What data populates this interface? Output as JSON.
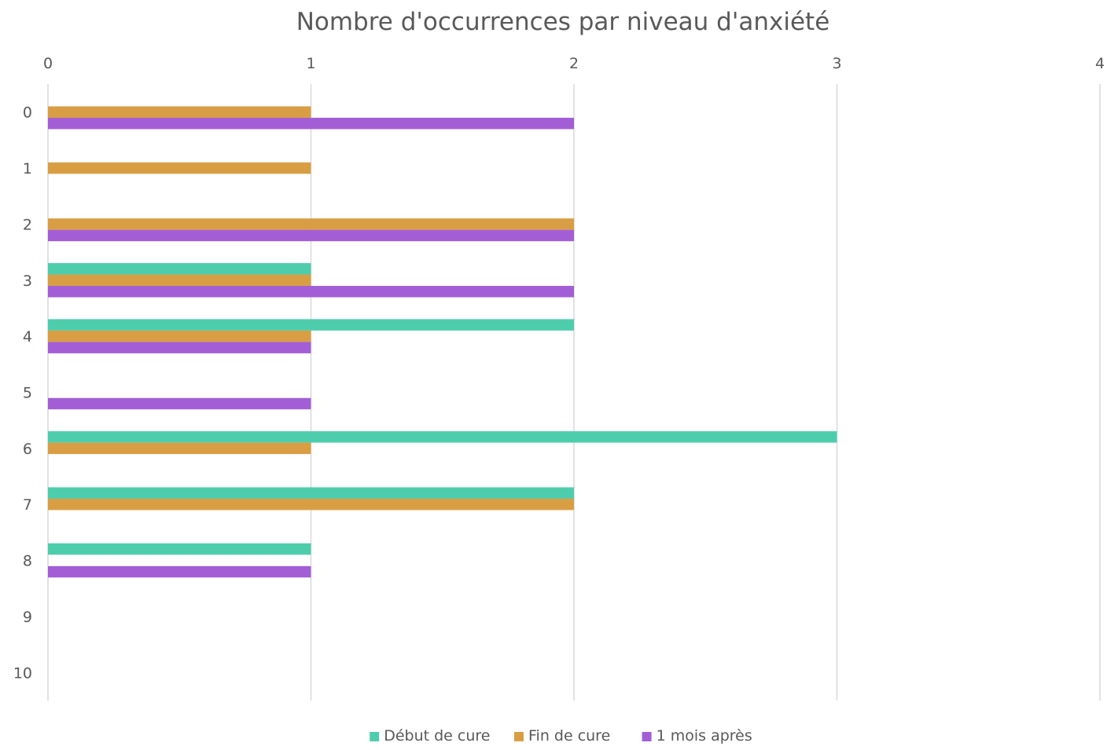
{
  "chart_data": {
    "type": "bar",
    "orientation": "horizontal",
    "title": "Nombre d'occurrences par niveau d'anxiété",
    "xlabel": "",
    "ylabel": "",
    "x_axis_position": "top",
    "xlim": [
      0,
      4
    ],
    "x_ticks": [
      "0",
      "1",
      "2",
      "3",
      "4"
    ],
    "grid": "vertical",
    "legend_position": "bottom",
    "categories": [
      "0",
      "1",
      "2",
      "3",
      "4",
      "5",
      "6",
      "7",
      "8",
      "9",
      "10"
    ],
    "series": [
      {
        "name": "Début de cure",
        "color": "#4ECDAD",
        "values": [
          0,
          0,
          0,
          1,
          2,
          0,
          3,
          2,
          1,
          0,
          0
        ]
      },
      {
        "name": "Fin de cure",
        "color": "#D99E43",
        "values": [
          1,
          1,
          2,
          1,
          1,
          0,
          1,
          2,
          0,
          0,
          0
        ]
      },
      {
        "name": "1 mois après",
        "color": "#A35ED6",
        "values": [
          2,
          0,
          2,
          2,
          1,
          1,
          0,
          0,
          1,
          0,
          0
        ]
      }
    ]
  }
}
